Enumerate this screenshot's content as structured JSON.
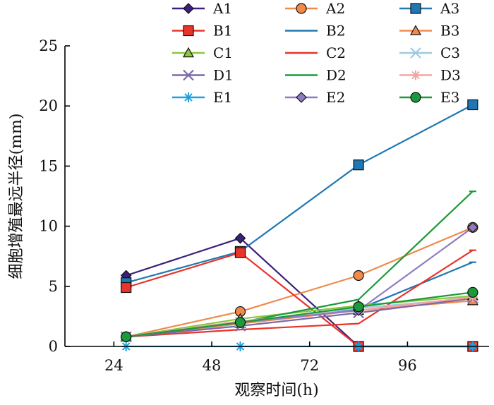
{
  "chart_data": {
    "type": "line",
    "xlabel": "观察时间(h)",
    "ylabel": "细胞增殖最远半径(mm)",
    "xlim": [
      12,
      116
    ],
    "ylim": [
      0,
      25
    ],
    "x_ticks": [
      24,
      48,
      72,
      96
    ],
    "y_ticks": [
      0,
      5,
      10,
      15,
      20,
      25
    ],
    "grid": false,
    "legend_position": "top",
    "x": [
      27,
      55,
      84,
      112
    ],
    "series": [
      {
        "name": "A1",
        "color": "#3b1f7a",
        "marker": "diamond",
        "values": [
          5.9,
          9.0,
          0.0,
          0.0
        ]
      },
      {
        "name": "A2",
        "color": "#f08a4b",
        "marker": "circle",
        "values": [
          0.8,
          2.9,
          5.9,
          9.9
        ]
      },
      {
        "name": "A3",
        "color": "#1f77b4",
        "marker": "square",
        "values": [
          5.3,
          7.9,
          15.1,
          20.1
        ]
      },
      {
        "name": "B1",
        "color": "#e8342b",
        "marker": "square",
        "values": [
          4.9,
          7.8,
          0.0,
          0.0
        ]
      },
      {
        "name": "B2",
        "color": "#1f77b4",
        "marker": "none",
        "values": [
          0.8,
          1.9,
          3.1,
          7.0
        ]
      },
      {
        "name": "B3",
        "color": "#f08a4b",
        "marker": "triangle",
        "values": [
          0.8,
          1.9,
          3.0,
          3.8
        ]
      },
      {
        "name": "C1",
        "color": "#8dc63f",
        "marker": "triangle",
        "values": [
          0.8,
          2.3,
          3.4,
          4.2
        ]
      },
      {
        "name": "C2",
        "color": "#e8342b",
        "marker": "none",
        "values": [
          0.8,
          1.4,
          1.9,
          8.0
        ]
      },
      {
        "name": "C3",
        "color": "#9ecae1",
        "marker": "x",
        "values": [
          0.8,
          2.0,
          3.2,
          4.0
        ]
      },
      {
        "name": "D1",
        "color": "#7b68a8",
        "marker": "x",
        "values": [
          0.8,
          1.7,
          2.8,
          4.0
        ]
      },
      {
        "name": "D2",
        "color": "#1a9a3a",
        "marker": "none",
        "values": [
          0.8,
          2.0,
          3.9,
          12.9
        ]
      },
      {
        "name": "D3",
        "color": "#f4a3a3",
        "marker": "star",
        "values": [
          0.8,
          2.1,
          3.0,
          4.1
        ]
      },
      {
        "name": "E1",
        "color": "#1da1e2",
        "marker": "star",
        "values": [
          0.0,
          0.0,
          0.0,
          0.0
        ]
      },
      {
        "name": "E2",
        "color": "#8e7cc3",
        "marker": "diamond",
        "values": [
          0.8,
          2.0,
          3.0,
          9.9
        ]
      },
      {
        "name": "E3",
        "color": "#1a9a3a",
        "marker": "circle",
        "values": [
          0.8,
          2.0,
          3.3,
          4.5
        ]
      }
    ]
  }
}
